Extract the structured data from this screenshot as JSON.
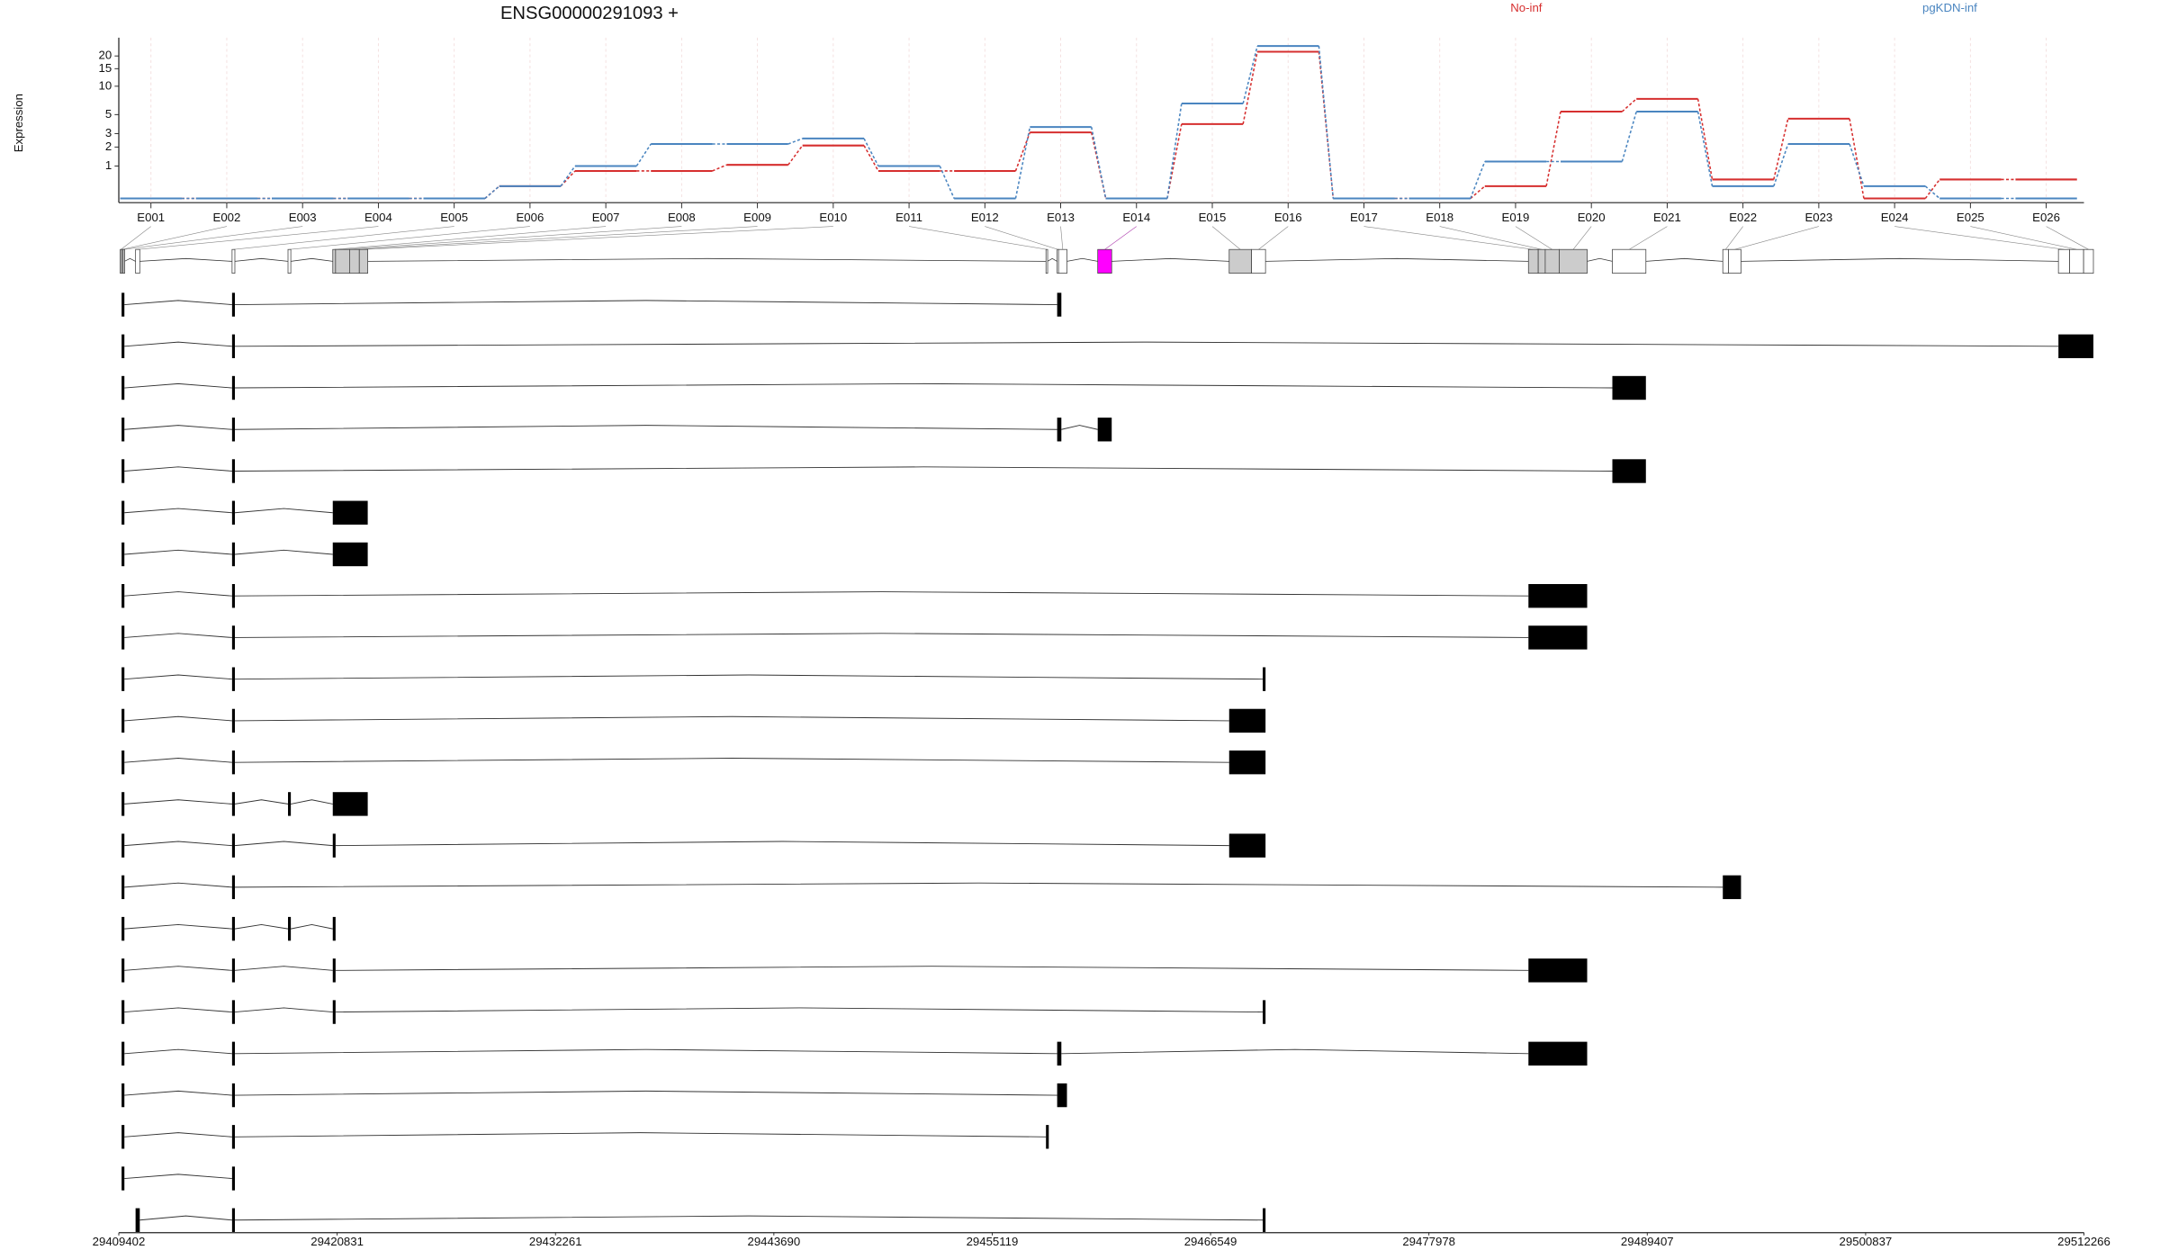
{
  "chart_data": {
    "type": "dexseq",
    "title": "ENSG00000291093 +",
    "ylabel": "Expression",
    "yscale": "log1p",
    "ylim": [
      0,
      30
    ],
    "yticks": [
      1,
      2,
      3,
      5,
      10,
      15,
      20
    ],
    "categories": [
      "E001",
      "E002",
      "E003",
      "E004",
      "E005",
      "E006",
      "E007",
      "E008",
      "E009",
      "E010",
      "E011",
      "E012",
      "E013",
      "E014",
      "E015",
      "E016",
      "E017",
      "E018",
      "E019",
      "E020",
      "E021",
      "E022",
      "E023",
      "E024",
      "E025",
      "E026"
    ],
    "series": [
      {
        "name": "No-inf",
        "color": "#d62f2f",
        "values": [
          0,
          0,
          0,
          0,
          0,
          0.3,
          0.8,
          0.8,
          1.05,
          2.1,
          0.8,
          0.8,
          3.1,
          0,
          3.9,
          22,
          0,
          0,
          0.3,
          5.4,
          7.4,
          0.5,
          4.5,
          0,
          0.5,
          0.5
        ]
      },
      {
        "name": "pgKDN-inf",
        "color": "#4a85c0",
        "values": [
          0,
          0,
          0,
          0,
          0,
          0.3,
          1.0,
          2.2,
          2.2,
          2.6,
          1.0,
          0,
          3.6,
          0,
          6.6,
          25,
          0,
          0,
          1.2,
          1.2,
          5.4,
          0.3,
          2.2,
          0.3,
          0,
          0
        ]
      }
    ],
    "exon_bins": [
      [
        29409475,
        29409548
      ],
      [
        29409548,
        29409622
      ],
      [
        29409622,
        29409695
      ],
      [
        29410280,
        29410500
      ],
      [
        29415331,
        29415478
      ],
      [
        29418259,
        29418406
      ],
      [
        29420602,
        29420748
      ],
      [
        29420748,
        29421480
      ],
      [
        29421480,
        29421992
      ],
      [
        29421992,
        29422432
      ],
      [
        29457934,
        29458007
      ],
      [
        29458519,
        29458592
      ],
      [
        29458592,
        29459032
      ],
      [
        29460642,
        29461374
      ],
      [
        29467523,
        29468694
      ],
      [
        29468694,
        29469426
      ],
      [
        29483188,
        29483700
      ],
      [
        29483700,
        29484066
      ],
      [
        29484066,
        29484798
      ],
      [
        29484798,
        29486262
      ],
      [
        29487580,
        29489336
      ],
      [
        29493362,
        29493655
      ],
      [
        29493655,
        29494314
      ],
      [
        29510930,
        29511516
      ],
      [
        29511516,
        29512248
      ],
      [
        29512248,
        29512760
      ]
    ],
    "bin_fills": [
      "#cccccc",
      "#cccccc",
      "#cccccc",
      "#ffffff",
      "#ffffff",
      "#ffffff",
      "#cccccc",
      "#cccccc",
      "#cccccc",
      "#cccccc",
      "#ffffff",
      "#ffffff",
      "#ffffff",
      "#ff00ff",
      "#cccccc",
      "#ffffff",
      "#cccccc",
      "#cccccc",
      "#cccccc",
      "#cccccc",
      "#ffffff",
      "#ffffff",
      "#ffffff",
      "#ffffff",
      "#ffffff",
      "#ffffff"
    ],
    "xlim": [
      29409402,
      29512266
    ],
    "xticks": [
      29409402,
      29420831,
      29432261,
      29443690,
      29455119,
      29466549,
      29477978,
      29489407,
      29500837,
      29512266
    ],
    "transcripts": [
      [
        [
          29409548,
          29409695
        ],
        [
          29415331,
          29415478
        ],
        [
          29458519,
          29458739
        ]
      ],
      [
        [
          29409548,
          29409695
        ],
        [
          29415331,
          29415478
        ],
        [
          29510930,
          29512760
        ]
      ],
      [
        [
          29409548,
          29409695
        ],
        [
          29415331,
          29415478
        ],
        [
          29487580,
          29489336
        ]
      ],
      [
        [
          29409548,
          29409695
        ],
        [
          29415331,
          29415478
        ],
        [
          29458519,
          29458739
        ],
        [
          29460642,
          29461374
        ]
      ],
      [
        [
          29409548,
          29409695
        ],
        [
          29415331,
          29415478
        ],
        [
          29487580,
          29489336
        ]
      ],
      [
        [
          29409548,
          29409695
        ],
        [
          29415331,
          29415478
        ],
        [
          29420602,
          29422432
        ]
      ],
      [
        [
          29409548,
          29409695
        ],
        [
          29415331,
          29415478
        ],
        [
          29420602,
          29422432
        ]
      ],
      [
        [
          29409548,
          29409695
        ],
        [
          29415331,
          29415478
        ],
        [
          29483188,
          29486262
        ]
      ],
      [
        [
          29409548,
          29409695
        ],
        [
          29415331,
          29415478
        ],
        [
          29483188,
          29486262
        ]
      ],
      [
        [
          29409548,
          29409695
        ],
        [
          29415331,
          29415478
        ],
        [
          29469280,
          29469426
        ]
      ],
      [
        [
          29409548,
          29409695
        ],
        [
          29415331,
          29415478
        ],
        [
          29467523,
          29469426
        ]
      ],
      [
        [
          29409548,
          29409695
        ],
        [
          29415331,
          29415478
        ],
        [
          29467523,
          29469426
        ]
      ],
      [
        [
          29409548,
          29409695
        ],
        [
          29415331,
          29415478
        ],
        [
          29418259,
          29418406
        ],
        [
          29420602,
          29422432
        ]
      ],
      [
        [
          29409548,
          29409695
        ],
        [
          29415331,
          29415478
        ],
        [
          29420602,
          29420748
        ],
        [
          29467523,
          29469426
        ]
      ],
      [
        [
          29409548,
          29409695
        ],
        [
          29415331,
          29415478
        ],
        [
          29493362,
          29494314
        ]
      ],
      [
        [
          29409548,
          29409695
        ],
        [
          29415331,
          29415478
        ],
        [
          29418259,
          29418406
        ],
        [
          29420602,
          29420748
        ]
      ],
      [
        [
          29409548,
          29409695
        ],
        [
          29415331,
          29415478
        ],
        [
          29420602,
          29420748
        ],
        [
          29483188,
          29486262
        ]
      ],
      [
        [
          29409548,
          29409695
        ],
        [
          29415331,
          29415478
        ],
        [
          29420602,
          29420748
        ],
        [
          29469280,
          29469426
        ]
      ],
      [
        [
          29409548,
          29409695
        ],
        [
          29415331,
          29415478
        ],
        [
          29458519,
          29458739
        ],
        [
          29483188,
          29486262
        ]
      ],
      [
        [
          29409548,
          29409695
        ],
        [
          29415331,
          29415478
        ],
        [
          29458519,
          29459032
        ]
      ],
      [
        [
          29409548,
          29409695
        ],
        [
          29415331,
          29415478
        ],
        [
          29457934,
          29458007
        ]
      ],
      [
        [
          29409548,
          29409695
        ],
        [
          29415331,
          29415478
        ]
      ],
      [
        [
          29410280,
          29410500
        ],
        [
          29415331,
          29415478
        ],
        [
          29469280,
          29469426
        ]
      ]
    ]
  }
}
